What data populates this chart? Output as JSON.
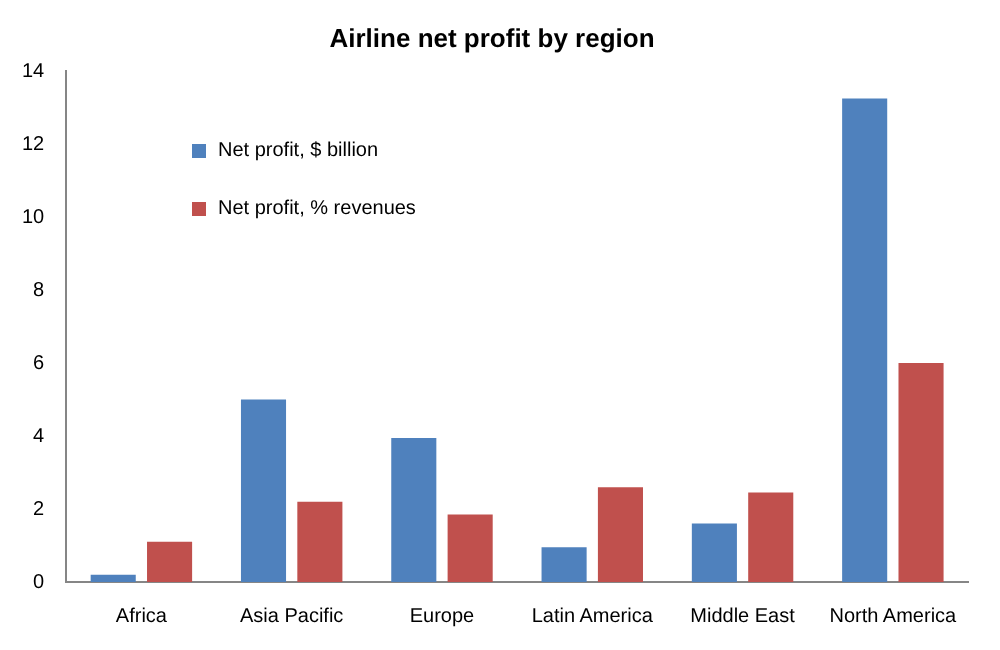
{
  "chart_data": {
    "type": "bar",
    "title": "Airline net profit by region",
    "categories": [
      "Africa",
      "Asia Pacific",
      "Europe",
      "Latin America",
      "Middle East",
      "North America"
    ],
    "series": [
      {
        "name": "Net profit, $ billion",
        "color": "#4f81bd",
        "values": [
          0.2,
          5.0,
          3.95,
          0.95,
          1.6,
          13.25
        ]
      },
      {
        "name": "Net profit, % revenues",
        "color": "#c0504d",
        "values": [
          1.1,
          2.2,
          1.85,
          2.6,
          2.45,
          6.0
        ]
      }
    ],
    "ylim": [
      0,
      14
    ],
    "yticks": [
      0,
      2,
      4,
      6,
      8,
      10,
      12,
      14
    ],
    "grid": false,
    "legend": "top left"
  }
}
